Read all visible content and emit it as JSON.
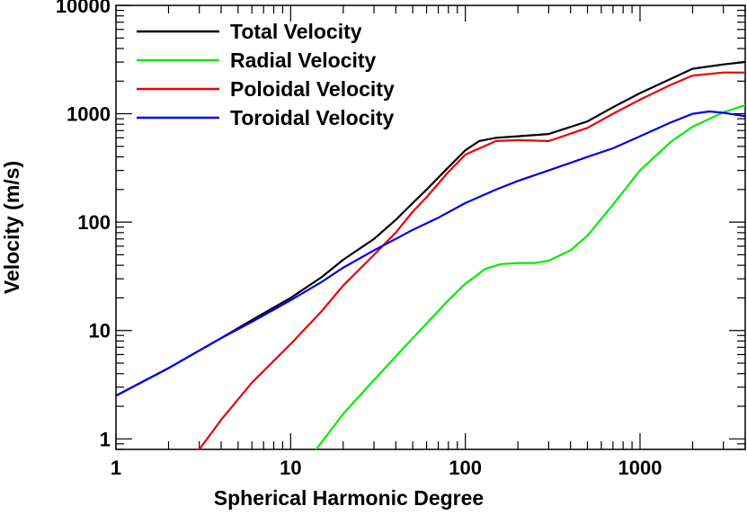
{
  "chart_data": {
    "type": "line",
    "xlabel": "Spherical Harmonic Degree",
    "ylabel": "Velocity (m/s)",
    "xscale": "log",
    "yscale": "log",
    "xlim": [
      1,
      4000
    ],
    "ylim": [
      0.8,
      10000
    ],
    "x_ticks": [
      1,
      10,
      100,
      1000
    ],
    "x_tick_labels": [
      "1",
      "10",
      "100",
      "1000"
    ],
    "y_ticks": [
      1,
      10,
      100,
      1000,
      10000
    ],
    "y_tick_labels": [
      "1",
      "10",
      "100",
      "1000",
      "10000"
    ],
    "grid": false,
    "legend_position": "top-left",
    "series": [
      {
        "name": "Total Velocity",
        "color": "#000000",
        "x": [
          1,
          2,
          4,
          6,
          10,
          15,
          20,
          30,
          40,
          50,
          60,
          80,
          100,
          120,
          150,
          200,
          300,
          500,
          700,
          1000,
          1500,
          2000,
          3000,
          4000
        ],
        "y": [
          2.5,
          4.5,
          8.5,
          12.5,
          20,
          31,
          45,
          70,
          105,
          150,
          200,
          320,
          460,
          560,
          600,
          620,
          650,
          850,
          1150,
          1550,
          2100,
          2600,
          2850,
          3000
        ]
      },
      {
        "name": "Radial Velocity",
        "color": "#00ee00",
        "x": [
          14,
          20,
          30,
          50,
          80,
          100,
          130,
          160,
          200,
          250,
          300,
          400,
          500,
          700,
          1000,
          1500,
          2000,
          3000,
          4000
        ],
        "y": [
          0.8,
          1.7,
          3.5,
          8.5,
          19,
          27,
          37,
          41,
          42,
          42,
          44,
          55,
          75,
          145,
          300,
          550,
          760,
          1030,
          1200
        ]
      },
      {
        "name": "Poloidal Velocity",
        "color": "#ee0000",
        "x": [
          3,
          4,
          6,
          10,
          15,
          20,
          30,
          40,
          50,
          60,
          80,
          100,
          150,
          200,
          300,
          500,
          700,
          1000,
          1500,
          2000,
          3000,
          4000
        ],
        "y": [
          0.8,
          1.5,
          3.3,
          7.5,
          15,
          26,
          50,
          80,
          125,
          170,
          290,
          420,
          560,
          570,
          560,
          740,
          1000,
          1350,
          1850,
          2250,
          2400,
          2400
        ]
      },
      {
        "name": "Toroidal Velocity",
        "color": "#0000ee",
        "x": [
          1,
          2,
          4,
          6,
          10,
          15,
          20,
          30,
          40,
          50,
          70,
          100,
          150,
          200,
          300,
          500,
          700,
          1000,
          1500,
          2000,
          2500,
          3000,
          4000
        ],
        "y": [
          2.5,
          4.5,
          8.5,
          12,
          19,
          28,
          38,
          55,
          70,
          85,
          110,
          150,
          200,
          240,
          300,
          400,
          480,
          620,
          830,
          1000,
          1050,
          1020,
          950
        ]
      }
    ]
  }
}
